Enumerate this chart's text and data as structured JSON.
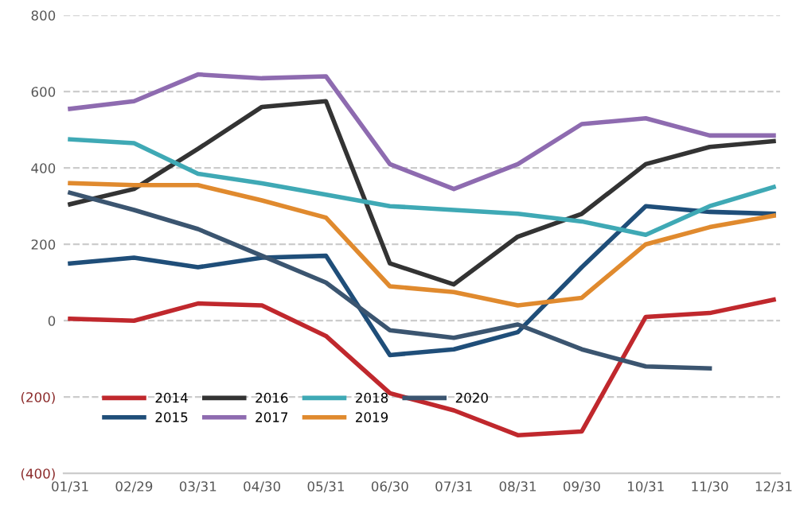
{
  "chart_data": {
    "type": "line",
    "categories": [
      "01/31",
      "02/29",
      "03/31",
      "04/30",
      "05/31",
      "06/30",
      "07/31",
      "08/31",
      "09/30",
      "10/31",
      "11/30",
      "12/31"
    ],
    "series": [
      {
        "name": "2014",
        "color": "#c0282d",
        "values": [
          5,
          0,
          45,
          40,
          -40,
          -190,
          -235,
          -300,
          -290,
          10,
          20,
          55
        ]
      },
      {
        "name": "2015",
        "color": "#1f4e79",
        "values": [
          150,
          165,
          140,
          165,
          170,
          -90,
          -75,
          -30,
          140,
          300,
          285,
          280
        ]
      },
      {
        "name": "2016",
        "color": "#333333",
        "values": [
          305,
          345,
          450,
          560,
          575,
          150,
          95,
          220,
          280,
          410,
          455,
          470
        ]
      },
      {
        "name": "2017",
        "color": "#8e6bb0",
        "values": [
          555,
          575,
          645,
          635,
          640,
          410,
          345,
          410,
          515,
          530,
          485,
          485
        ]
      },
      {
        "name": "2018",
        "color": "#3fa9b5",
        "values": [
          475,
          465,
          385,
          360,
          330,
          300,
          290,
          280,
          260,
          225,
          300,
          350
        ]
      },
      {
        "name": "2019",
        "color": "#e08a2e",
        "values": [
          360,
          355,
          355,
          315,
          270,
          90,
          75,
          40,
          60,
          200,
          245,
          275
        ]
      },
      {
        "name": "2020",
        "color": "#3b5570",
        "values": [
          335,
          290,
          240,
          170,
          100,
          -25,
          -45,
          -10,
          -75,
          -120,
          -125,
          null
        ]
      }
    ],
    "ylim": [
      -400,
      800
    ],
    "yticks": [
      800,
      600,
      400,
      200,
      0,
      {
        "value": -200,
        "label": "(200)"
      },
      {
        "value": -400,
        "label": "(400)"
      }
    ],
    "grid": "y",
    "legend": "bottom left",
    "marker": "none",
    "line_style": "solid"
  }
}
